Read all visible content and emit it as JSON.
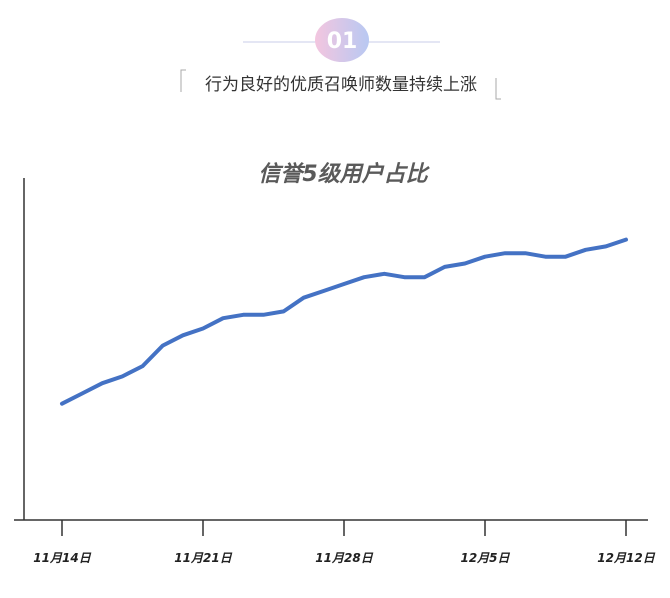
{
  "header": {
    "number": "01",
    "title": "行为良好的优质召唤师数量持续上涨"
  },
  "chart_data": {
    "type": "line",
    "title": "信誉5级用户占比",
    "categories": [
      "11月14日",
      null,
      null,
      null,
      null,
      null,
      null,
      "11月21日",
      null,
      null,
      null,
      null,
      null,
      null,
      "11月28日",
      null,
      null,
      null,
      null,
      null,
      null,
      "12月5日",
      null,
      null,
      null,
      null,
      null,
      null,
      "12月12日"
    ],
    "values": [
      34,
      37,
      40,
      42,
      45,
      51,
      54,
      56,
      59,
      60,
      60,
      61,
      65,
      67,
      69,
      71,
      72,
      71,
      71,
      74,
      75,
      77,
      78,
      78,
      77,
      77,
      79,
      80,
      82
    ],
    "color": "#4472c4",
    "ylim": [
      0,
      100
    ]
  }
}
